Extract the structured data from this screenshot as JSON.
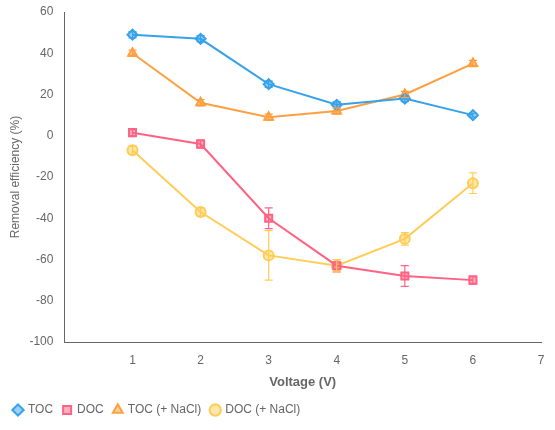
{
  "chart_data": {
    "type": "line",
    "xlabel": "Voltage (V)",
    "ylabel": "Removal efficiency (%)",
    "x": [
      1,
      2,
      3,
      4,
      5,
      6
    ],
    "series": [
      {
        "name": "TOC",
        "values": [
          49,
          47,
          25,
          15,
          18,
          10
        ],
        "yerr": [
          1.5,
          1.5,
          1.5,
          1.5,
          1.5,
          1.0
        ],
        "marker": "diamond"
      },
      {
        "name": "DOC",
        "values": [
          1.5,
          -4,
          -40,
          -63,
          -68,
          -70
        ],
        "yerr": [
          1.5,
          2,
          5,
          3,
          5,
          2
        ],
        "marker": "square"
      },
      {
        "name": "TOC (+ NaCl)",
        "values": [
          40,
          16,
          9,
          12,
          20,
          35
        ],
        "yerr": [
          1.5,
          1.5,
          1.5,
          1.5,
          1.5,
          1.5
        ],
        "marker": "triangle"
      },
      {
        "name": "DOC (+ NaCl)",
        "values": [
          -7,
          -37,
          -58,
          -63,
          -50,
          -23
        ],
        "yerr": [
          2,
          2,
          12,
          3,
          3,
          5
        ],
        "marker": "circle"
      }
    ],
    "xlim": [
      0,
      7
    ],
    "ylim": [
      -100,
      60
    ],
    "xticks": [
      1,
      2,
      3,
      4,
      5,
      6,
      7
    ],
    "yticks": [
      -100,
      -80,
      -60,
      -40,
      -20,
      0,
      20,
      40,
      60
    ],
    "grid": false,
    "legend": "lower left"
  }
}
